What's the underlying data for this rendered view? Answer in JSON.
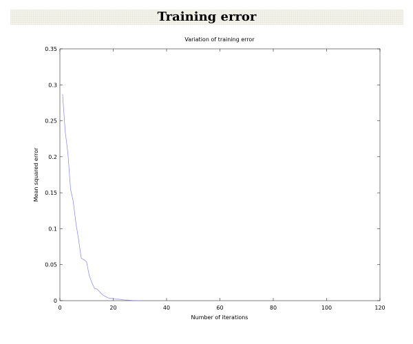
{
  "page": {
    "title": "Training error"
  },
  "colors": {
    "series": "#8080ff",
    "axis": "#000000",
    "header_bg": "#f4f3ea"
  },
  "chart_data": {
    "type": "line",
    "title": "Variation of training error",
    "xlabel": "Number of iterations",
    "ylabel": "Mean squared error",
    "xlim": [
      0,
      120
    ],
    "ylim": [
      0,
      0.35
    ],
    "grid": false,
    "x_ticks": [
      0,
      20,
      40,
      60,
      80,
      100,
      120
    ],
    "y_ticks": [
      0,
      0.05,
      0.1,
      0.15,
      0.2,
      0.25,
      0.3,
      0.35
    ],
    "x_tick_labels": [
      "0",
      "20",
      "40",
      "60",
      "80",
      "100",
      "120"
    ],
    "y_tick_labels": [
      "0",
      "0.05",
      "0.1",
      "0.15",
      "0.2",
      "0.25",
      "0.3",
      "0.35"
    ],
    "series": [
      {
        "x": [
          1,
          2,
          3,
          4,
          5,
          6,
          7,
          8,
          9,
          10,
          11,
          12,
          13,
          14,
          15,
          16,
          17,
          18,
          19,
          20,
          21,
          22,
          23,
          24,
          25,
          26,
          27,
          28,
          29,
          30
        ],
        "y": [
          0.287,
          0.235,
          0.205,
          0.155,
          0.138,
          0.108,
          0.085,
          0.059,
          0.057,
          0.054,
          0.035,
          0.025,
          0.017,
          0.016,
          0.012,
          0.008,
          0.006,
          0.004,
          0.003,
          0.003,
          0.002,
          0.002,
          0.0015,
          0.001,
          0.0008,
          0.0006,
          0.0004,
          0.0003,
          0.0002,
          0.0001
        ]
      }
    ]
  }
}
